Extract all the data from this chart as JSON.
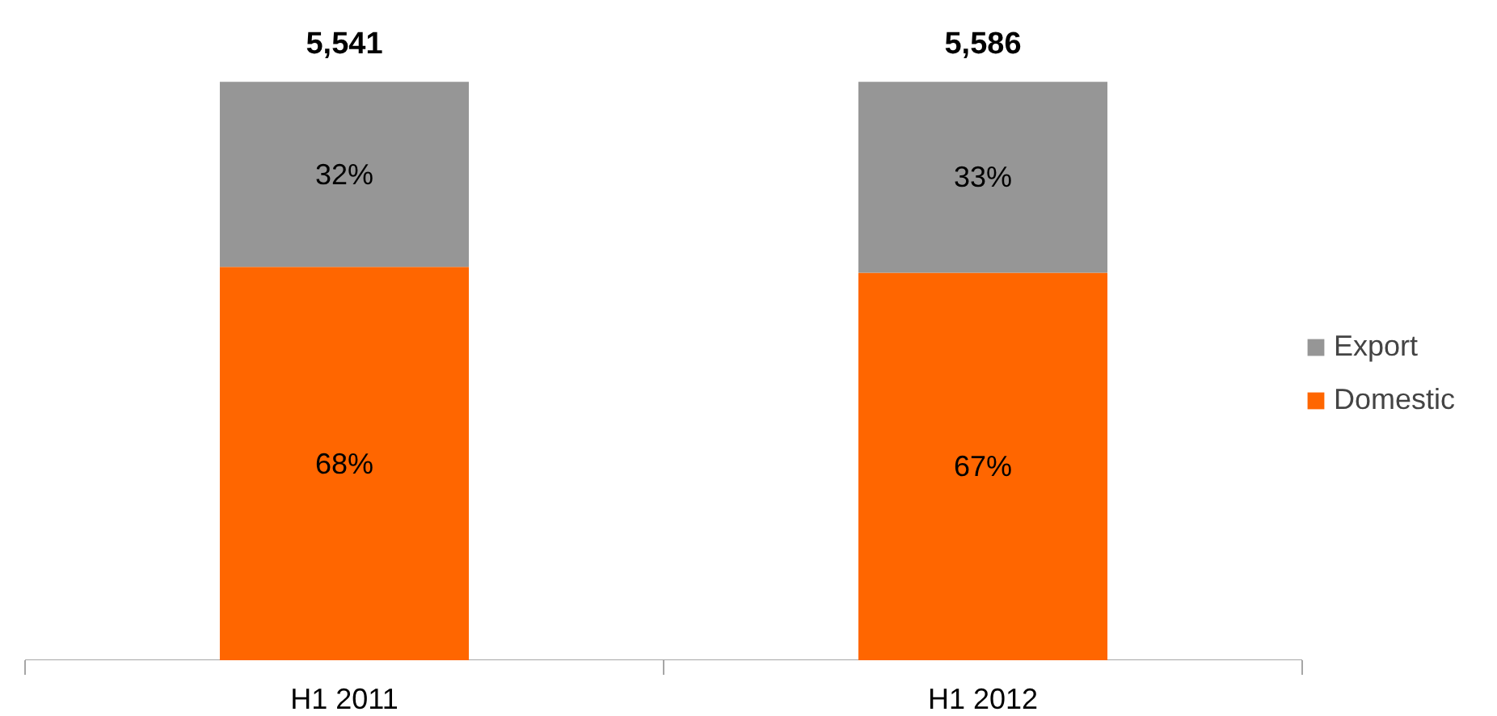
{
  "chart_data": {
    "type": "bar",
    "stacked": true,
    "categories": [
      "H1 2011",
      "H1 2012"
    ],
    "series": [
      {
        "name": "Domestic",
        "color": "#ff6600",
        "values": [
          68,
          67
        ],
        "value_labels": [
          "68%",
          "67%"
        ]
      },
      {
        "name": "Export",
        "color": "#969696",
        "values": [
          32,
          33
        ],
        "value_labels": [
          "32%",
          "33%"
        ]
      }
    ],
    "annotations": [
      "5,541",
      "5,586"
    ],
    "legend": "right"
  }
}
